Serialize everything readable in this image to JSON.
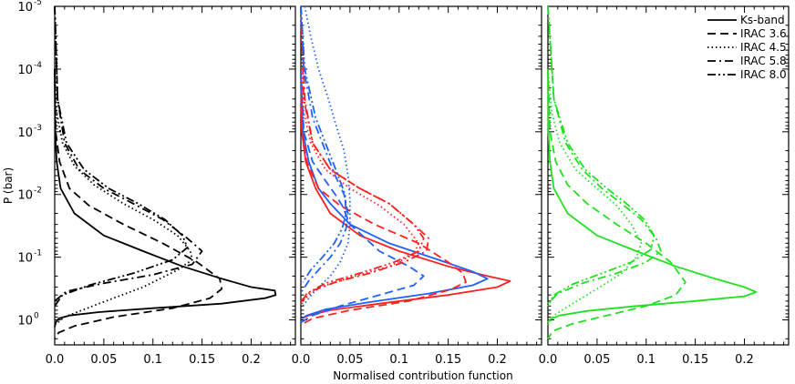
{
  "chart_data": [
    {
      "type": "line",
      "panel": "left",
      "ylabel": "P (bar)",
      "x_ticks": [
        "0.0",
        "0.05",
        "0.1",
        "0.15",
        "0.2"
      ],
      "y_ticks": [
        {
          "base": "10",
          "exp": "-5",
          "value": 1e-05
        },
        {
          "base": "10",
          "exp": "-4",
          "value": 0.0001
        },
        {
          "base": "10",
          "exp": "-3",
          "value": 0.001
        },
        {
          "base": "10",
          "exp": "-2",
          "value": 0.01
        },
        {
          "base": "10",
          "exp": "-1",
          "value": 0.1
        },
        {
          "base": "10",
          "exp": "0",
          "value": 1
        }
      ],
      "xlim": [
        0,
        0.245
      ],
      "ylim": [
        1e-05,
        2.5
      ],
      "y_scale": "log",
      "y_inverted": true,
      "series": [
        {
          "band": "Ks-band",
          "style": "solid",
          "color": "#000000",
          "x": [
            0,
            0.0005,
            0.002,
            0.006,
            0.02,
            0.05,
            0.09,
            0.13,
            0.17,
            0.2,
            0.224,
            0.225,
            0.214,
            0.17,
            0.1,
            0.045,
            0.015,
            0.004,
            0.001,
            0
          ],
          "y": [
            0.0001,
            0.001,
            0.003,
            0.008,
            0.02,
            0.045,
            0.08,
            0.14,
            0.22,
            0.3,
            0.34,
            0.4,
            0.45,
            0.55,
            0.65,
            0.75,
            0.85,
            0.95,
            1.1,
            1.3
          ]
        },
        {
          "band": "IRAC 3.6",
          "style": "dashed",
          "color": "#000000",
          "x": [
            0,
            0.001,
            0.005,
            0.015,
            0.035,
            0.07,
            0.11,
            0.145,
            0.168,
            0.17,
            0.158,
            0.12,
            0.06,
            0.02,
            0.004,
            0
          ],
          "y": [
            0.0001,
            0.001,
            0.003,
            0.008,
            0.015,
            0.03,
            0.06,
            0.12,
            0.22,
            0.32,
            0.45,
            0.65,
            0.9,
            1.25,
            1.6,
            2.0
          ]
        },
        {
          "band": "IRAC 4.5",
          "style": "dotted",
          "color": "#000000",
          "x": [
            0,
            0.002,
            0.008,
            0.02,
            0.04,
            0.07,
            0.1,
            0.125,
            0.138,
            0.14,
            0.125,
            0.09,
            0.045,
            0.01,
            0
          ],
          "y": [
            0.0001,
            0.0005,
            0.0015,
            0.0035,
            0.007,
            0.014,
            0.025,
            0.045,
            0.08,
            0.11,
            0.16,
            0.3,
            0.55,
            0.9,
            1.2
          ]
        },
        {
          "band": "IRAC 5.8",
          "style": "dashdot",
          "color": "#000000",
          "x": [
            0,
            0.003,
            0.01,
            0.025,
            0.05,
            0.08,
            0.11,
            0.135,
            0.15,
            0.14,
            0.1,
            0.05,
            0.012,
            0
          ],
          "y": [
            1e-05,
            0.0003,
            0.0015,
            0.004,
            0.008,
            0.014,
            0.025,
            0.05,
            0.08,
            0.13,
            0.19,
            0.26,
            0.35,
            0.5
          ]
        },
        {
          "band": "IRAC 8.0",
          "style": "dashdotdot",
          "color": "#000000",
          "x": [
            0,
            0.003,
            0.012,
            0.03,
            0.055,
            0.085,
            0.112,
            0.13,
            0.135,
            0.12,
            0.08,
            0.035,
            0.008,
            0
          ],
          "y": [
            1e-05,
            0.0003,
            0.0015,
            0.004,
            0.008,
            0.014,
            0.025,
            0.045,
            0.07,
            0.11,
            0.18,
            0.28,
            0.4,
            0.6
          ]
        }
      ]
    },
    {
      "type": "line",
      "panel": "middle",
      "xlabel": "Normalised contribution function",
      "x_ticks": [
        "0.0",
        "0.05",
        "0.1",
        "0.15",
        "0.2"
      ],
      "xlim": [
        0,
        0.245
      ],
      "ylim": [
        1e-05,
        2.5
      ],
      "y_scale": "log",
      "y_inverted": true,
      "series": [
        {
          "band": "Ks-band",
          "style": "solid",
          "color": "#ff2020",
          "x": [
            0,
            0.001,
            0.005,
            0.015,
            0.03,
            0.06,
            0.1,
            0.15,
            0.19,
            0.213,
            0.2,
            0.15,
            0.08,
            0.03,
            0.008,
            0.001
          ],
          "y": [
            0.0001,
            0.001,
            0.003,
            0.008,
            0.02,
            0.045,
            0.08,
            0.14,
            0.2,
            0.24,
            0.3,
            0.4,
            0.55,
            0.7,
            0.85,
            0.95
          ]
        },
        {
          "band": "Ks-band",
          "style": "solid",
          "color": "#2060ff",
          "x": [
            0,
            0.002,
            0.008,
            0.018,
            0.03,
            0.05,
            0.09,
            0.14,
            0.175,
            0.19,
            0.175,
            0.13,
            0.07,
            0.025,
            0.006,
            0.001
          ],
          "y": [
            0.0001,
            0.001,
            0.003,
            0.008,
            0.014,
            0.03,
            0.06,
            0.11,
            0.17,
            0.22,
            0.28,
            0.38,
            0.52,
            0.68,
            0.85,
            0.95
          ]
        },
        {
          "band": "IRAC 3.6",
          "style": "dashed",
          "color": "#ff2020",
          "x": [
            0,
            0.001,
            0.006,
            0.018,
            0.04,
            0.075,
            0.12,
            0.15,
            0.165,
            0.168,
            0.152,
            0.11,
            0.05,
            0.012,
            0
          ],
          "y": [
            0.0001,
            0.001,
            0.003,
            0.008,
            0.015,
            0.03,
            0.06,
            0.12,
            0.18,
            0.25,
            0.33,
            0.5,
            0.7,
            0.95,
            1.2
          ]
        },
        {
          "band": "IRAC 3.6",
          "style": "dashed",
          "color": "#2060ff",
          "x": [
            0,
            0.003,
            0.012,
            0.025,
            0.035,
            0.042,
            0.05,
            0.08,
            0.11,
            0.125,
            0.115,
            0.08,
            0.04,
            0.012,
            0
          ],
          "y": [
            0.0001,
            0.001,
            0.003,
            0.006,
            0.01,
            0.015,
            0.03,
            0.08,
            0.14,
            0.2,
            0.28,
            0.4,
            0.6,
            0.85,
            1.1
          ]
        },
        {
          "band": "IRAC 4.5",
          "style": "dotted",
          "color": "#ff2020",
          "x": [
            0,
            0.003,
            0.01,
            0.025,
            0.05,
            0.08,
            0.105,
            0.12,
            0.115,
            0.09,
            0.055,
            0.02,
            0.004,
            0
          ],
          "y": [
            0.0001,
            0.0005,
            0.0015,
            0.004,
            0.008,
            0.015,
            0.03,
            0.06,
            0.09,
            0.14,
            0.2,
            0.3,
            0.45,
            0.6
          ]
        },
        {
          "band": "IRAC 4.5",
          "style": "dotted",
          "color": "#2060ff",
          "x": [
            0.004,
            0.01,
            0.018,
            0.028,
            0.036,
            0.044,
            0.048,
            0.05,
            0.05,
            0.048,
            0.04,
            0.03,
            0.018,
            0.008,
            0.002
          ],
          "y": [
            1e-05,
            3e-05,
            0.0001,
            0.0003,
            0.0008,
            0.002,
            0.005,
            0.012,
            0.03,
            0.06,
            0.12,
            0.2,
            0.3,
            0.45,
            0.6
          ]
        },
        {
          "band": "IRAC 5.8",
          "style": "dashdot",
          "color": "#ff2020",
          "x": [
            0,
            0.004,
            0.012,
            0.03,
            0.06,
            0.09,
            0.115,
            0.13,
            0.128,
            0.105,
            0.07,
            0.035,
            0.01,
            0
          ],
          "y": [
            1e-05,
            0.0003,
            0.0015,
            0.004,
            0.008,
            0.014,
            0.03,
            0.05,
            0.08,
            0.12,
            0.18,
            0.25,
            0.35,
            0.5
          ]
        },
        {
          "band": "IRAC 5.8",
          "style": "dashdot",
          "color": "#2060ff",
          "x": [
            0,
            0.003,
            0.012,
            0.025,
            0.035,
            0.044,
            0.048,
            0.046,
            0.04,
            0.03,
            0.018,
            0.008,
            0.001
          ],
          "y": [
            1e-05,
            0.0001,
            0.0006,
            0.002,
            0.005,
            0.01,
            0.02,
            0.035,
            0.06,
            0.1,
            0.16,
            0.24,
            0.35
          ]
        },
        {
          "band": "IRAC 8.0",
          "style": "dashdotdot",
          "color": "#ff2020",
          "x": [
            0,
            0.003,
            0.012,
            0.03,
            0.06,
            0.09,
            0.115,
            0.125,
            0.12,
            0.095,
            0.06,
            0.025,
            0.006,
            0
          ],
          "y": [
            1e-05,
            0.0003,
            0.0015,
            0.004,
            0.008,
            0.014,
            0.03,
            0.05,
            0.08,
            0.12,
            0.18,
            0.26,
            0.38,
            0.55
          ]
        },
        {
          "band": "IRAC 8.0",
          "style": "dashdotdot",
          "color": "#2060ff",
          "x": [
            0,
            0.004,
            0.015,
            0.028,
            0.038,
            0.045,
            0.046,
            0.042,
            0.034,
            0.022,
            0.01,
            0.002
          ],
          "y": [
            1e-05,
            0.0001,
            0.0006,
            0.002,
            0.005,
            0.01,
            0.02,
            0.035,
            0.06,
            0.1,
            0.16,
            0.25
          ]
        }
      ]
    },
    {
      "type": "line",
      "panel": "right",
      "x_ticks": [
        "0.0",
        "0.05",
        "0.1",
        "0.15",
        "0.2"
      ],
      "xlim": [
        0,
        0.245
      ],
      "ylim": [
        1e-05,
        2.5
      ],
      "y_scale": "log",
      "y_inverted": true,
      "legend": {
        "position": "top-right",
        "entries": [
          {
            "label": "Ks-band",
            "style": "solid"
          },
          {
            "label": "IRAC 3.6",
            "style": "dashed"
          },
          {
            "label": "IRAC 4.5",
            "style": "dotted"
          },
          {
            "label": "IRAC 5.8",
            "style": "dashdot"
          },
          {
            "label": "IRAC 8.0",
            "style": "dashdotdot"
          }
        ]
      },
      "series": [
        {
          "band": "Ks-band",
          "style": "solid",
          "color": "#20e020",
          "x": [
            0,
            0.0005,
            0.002,
            0.006,
            0.02,
            0.05,
            0.09,
            0.13,
            0.17,
            0.2,
            0.212,
            0.2,
            0.15,
            0.09,
            0.04,
            0.012,
            0.002,
            0
          ],
          "y": [
            0.0001,
            0.001,
            0.003,
            0.008,
            0.02,
            0.045,
            0.08,
            0.14,
            0.22,
            0.3,
            0.36,
            0.42,
            0.5,
            0.6,
            0.72,
            0.85,
            0.98,
            1.1
          ]
        },
        {
          "band": "IRAC 3.6",
          "style": "dashed",
          "color": "#20e020",
          "x": [
            0,
            0.002,
            0.008,
            0.02,
            0.04,
            0.07,
            0.1,
            0.125,
            0.14,
            0.13,
            0.1,
            0.06,
            0.025,
            0.005,
            0
          ],
          "y": [
            0.0001,
            0.001,
            0.003,
            0.007,
            0.014,
            0.03,
            0.06,
            0.12,
            0.25,
            0.4,
            0.6,
            0.85,
            1.15,
            1.5,
            2.0
          ]
        },
        {
          "band": "IRAC 4.5",
          "style": "dotted",
          "color": "#20e020",
          "x": [
            0,
            0.004,
            0.012,
            0.028,
            0.05,
            0.07,
            0.085,
            0.095,
            0.09,
            0.075,
            0.05,
            0.025,
            0.006,
            0
          ],
          "y": [
            0.0001,
            0.0005,
            0.0015,
            0.004,
            0.008,
            0.015,
            0.03,
            0.06,
            0.1,
            0.18,
            0.32,
            0.55,
            0.85,
            1.2
          ]
        },
        {
          "band": "IRAC 5.8",
          "style": "dashdot",
          "color": "#20e020",
          "x": [
            0,
            0.006,
            0.018,
            0.035,
            0.055,
            0.075,
            0.095,
            0.11,
            0.115,
            0.1,
            0.07,
            0.035,
            0.01,
            0
          ],
          "y": [
            1e-05,
            0.0003,
            0.0015,
            0.004,
            0.008,
            0.014,
            0.025,
            0.05,
            0.08,
            0.12,
            0.18,
            0.26,
            0.38,
            0.55
          ]
        },
        {
          "band": "IRAC 8.0",
          "style": "dashdotdot",
          "color": "#20e020",
          "x": [
            0,
            0.006,
            0.02,
            0.038,
            0.06,
            0.08,
            0.098,
            0.108,
            0.105,
            0.085,
            0.055,
            0.025,
            0.006,
            0
          ],
          "y": [
            1e-05,
            0.0003,
            0.0015,
            0.004,
            0.008,
            0.014,
            0.025,
            0.045,
            0.075,
            0.12,
            0.18,
            0.27,
            0.4,
            0.6
          ]
        }
      ]
    }
  ]
}
